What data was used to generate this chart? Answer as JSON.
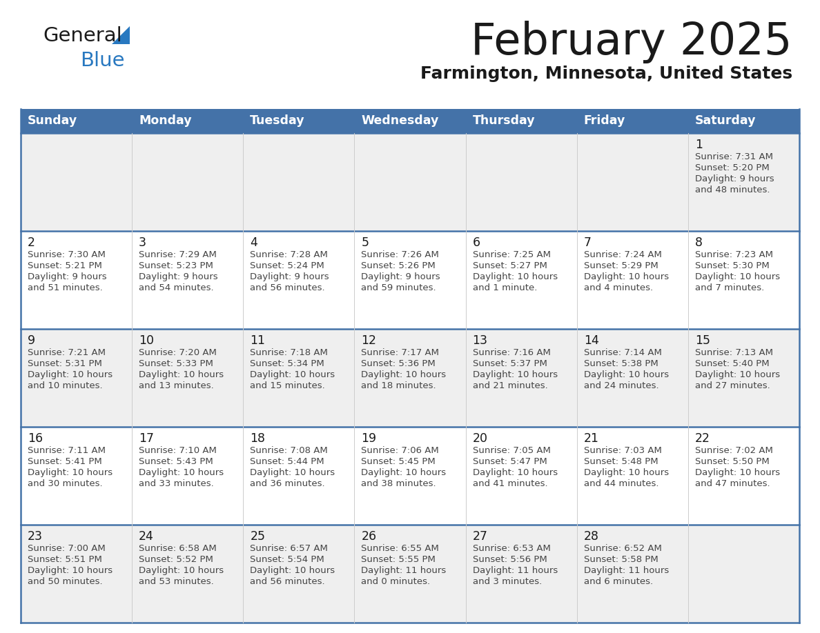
{
  "title": "February 2025",
  "subtitle": "Farmington, Minnesota, United States",
  "header_bg": "#4472a8",
  "header_text": "#ffffff",
  "cell_bg_row0": "#efefef",
  "cell_bg_row1": "#ffffff",
  "cell_border_blue": "#4472a8",
  "cell_border_gray": "#cccccc",
  "text_dark": "#1a1a1a",
  "text_info": "#444444",
  "logo_black": "#1a1a1a",
  "logo_blue": "#2878c0",
  "day_headers": [
    "Sunday",
    "Monday",
    "Tuesday",
    "Wednesday",
    "Thursday",
    "Friday",
    "Saturday"
  ],
  "days": [
    {
      "day": 1,
      "col": 6,
      "row": 0,
      "sunrise": "7:31 AM",
      "sunset": "5:20 PM",
      "daylight_line1": "Daylight: 9 hours",
      "daylight_line2": "and 48 minutes."
    },
    {
      "day": 2,
      "col": 0,
      "row": 1,
      "sunrise": "7:30 AM",
      "sunset": "5:21 PM",
      "daylight_line1": "Daylight: 9 hours",
      "daylight_line2": "and 51 minutes."
    },
    {
      "day": 3,
      "col": 1,
      "row": 1,
      "sunrise": "7:29 AM",
      "sunset": "5:23 PM",
      "daylight_line1": "Daylight: 9 hours",
      "daylight_line2": "and 54 minutes."
    },
    {
      "day": 4,
      "col": 2,
      "row": 1,
      "sunrise": "7:28 AM",
      "sunset": "5:24 PM",
      "daylight_line1": "Daylight: 9 hours",
      "daylight_line2": "and 56 minutes."
    },
    {
      "day": 5,
      "col": 3,
      "row": 1,
      "sunrise": "7:26 AM",
      "sunset": "5:26 PM",
      "daylight_line1": "Daylight: 9 hours",
      "daylight_line2": "and 59 minutes."
    },
    {
      "day": 6,
      "col": 4,
      "row": 1,
      "sunrise": "7:25 AM",
      "sunset": "5:27 PM",
      "daylight_line1": "Daylight: 10 hours",
      "daylight_line2": "and 1 minute."
    },
    {
      "day": 7,
      "col": 5,
      "row": 1,
      "sunrise": "7:24 AM",
      "sunset": "5:29 PM",
      "daylight_line1": "Daylight: 10 hours",
      "daylight_line2": "and 4 minutes."
    },
    {
      "day": 8,
      "col": 6,
      "row": 1,
      "sunrise": "7:23 AM",
      "sunset": "5:30 PM",
      "daylight_line1": "Daylight: 10 hours",
      "daylight_line2": "and 7 minutes."
    },
    {
      "day": 9,
      "col": 0,
      "row": 2,
      "sunrise": "7:21 AM",
      "sunset": "5:31 PM",
      "daylight_line1": "Daylight: 10 hours",
      "daylight_line2": "and 10 minutes."
    },
    {
      "day": 10,
      "col": 1,
      "row": 2,
      "sunrise": "7:20 AM",
      "sunset": "5:33 PM",
      "daylight_line1": "Daylight: 10 hours",
      "daylight_line2": "and 13 minutes."
    },
    {
      "day": 11,
      "col": 2,
      "row": 2,
      "sunrise": "7:18 AM",
      "sunset": "5:34 PM",
      "daylight_line1": "Daylight: 10 hours",
      "daylight_line2": "and 15 minutes."
    },
    {
      "day": 12,
      "col": 3,
      "row": 2,
      "sunrise": "7:17 AM",
      "sunset": "5:36 PM",
      "daylight_line1": "Daylight: 10 hours",
      "daylight_line2": "and 18 minutes."
    },
    {
      "day": 13,
      "col": 4,
      "row": 2,
      "sunrise": "7:16 AM",
      "sunset": "5:37 PM",
      "daylight_line1": "Daylight: 10 hours",
      "daylight_line2": "and 21 minutes."
    },
    {
      "day": 14,
      "col": 5,
      "row": 2,
      "sunrise": "7:14 AM",
      "sunset": "5:38 PM",
      "daylight_line1": "Daylight: 10 hours",
      "daylight_line2": "and 24 minutes."
    },
    {
      "day": 15,
      "col": 6,
      "row": 2,
      "sunrise": "7:13 AM",
      "sunset": "5:40 PM",
      "daylight_line1": "Daylight: 10 hours",
      "daylight_line2": "and 27 minutes."
    },
    {
      "day": 16,
      "col": 0,
      "row": 3,
      "sunrise": "7:11 AM",
      "sunset": "5:41 PM",
      "daylight_line1": "Daylight: 10 hours",
      "daylight_line2": "and 30 minutes."
    },
    {
      "day": 17,
      "col": 1,
      "row": 3,
      "sunrise": "7:10 AM",
      "sunset": "5:43 PM",
      "daylight_line1": "Daylight: 10 hours",
      "daylight_line2": "and 33 minutes."
    },
    {
      "day": 18,
      "col": 2,
      "row": 3,
      "sunrise": "7:08 AM",
      "sunset": "5:44 PM",
      "daylight_line1": "Daylight: 10 hours",
      "daylight_line2": "and 36 minutes."
    },
    {
      "day": 19,
      "col": 3,
      "row": 3,
      "sunrise": "7:06 AM",
      "sunset": "5:45 PM",
      "daylight_line1": "Daylight: 10 hours",
      "daylight_line2": "and 38 minutes."
    },
    {
      "day": 20,
      "col": 4,
      "row": 3,
      "sunrise": "7:05 AM",
      "sunset": "5:47 PM",
      "daylight_line1": "Daylight: 10 hours",
      "daylight_line2": "and 41 minutes."
    },
    {
      "day": 21,
      "col": 5,
      "row": 3,
      "sunrise": "7:03 AM",
      "sunset": "5:48 PM",
      "daylight_line1": "Daylight: 10 hours",
      "daylight_line2": "and 44 minutes."
    },
    {
      "day": 22,
      "col": 6,
      "row": 3,
      "sunrise": "7:02 AM",
      "sunset": "5:50 PM",
      "daylight_line1": "Daylight: 10 hours",
      "daylight_line2": "and 47 minutes."
    },
    {
      "day": 23,
      "col": 0,
      "row": 4,
      "sunrise": "7:00 AM",
      "sunset": "5:51 PM",
      "daylight_line1": "Daylight: 10 hours",
      "daylight_line2": "and 50 minutes."
    },
    {
      "day": 24,
      "col": 1,
      "row": 4,
      "sunrise": "6:58 AM",
      "sunset": "5:52 PM",
      "daylight_line1": "Daylight: 10 hours",
      "daylight_line2": "and 53 minutes."
    },
    {
      "day": 25,
      "col": 2,
      "row": 4,
      "sunrise": "6:57 AM",
      "sunset": "5:54 PM",
      "daylight_line1": "Daylight: 10 hours",
      "daylight_line2": "and 56 minutes."
    },
    {
      "day": 26,
      "col": 3,
      "row": 4,
      "sunrise": "6:55 AM",
      "sunset": "5:55 PM",
      "daylight_line1": "Daylight: 11 hours",
      "daylight_line2": "and 0 minutes."
    },
    {
      "day": 27,
      "col": 4,
      "row": 4,
      "sunrise": "6:53 AM",
      "sunset": "5:56 PM",
      "daylight_line1": "Daylight: 11 hours",
      "daylight_line2": "and 3 minutes."
    },
    {
      "day": 28,
      "col": 5,
      "row": 4,
      "sunrise": "6:52 AM",
      "sunset": "5:58 PM",
      "daylight_line1": "Daylight: 11 hours",
      "daylight_line2": "and 6 minutes."
    }
  ],
  "num_rows": 5,
  "num_cols": 7,
  "fig_width": 11.88,
  "fig_height": 9.18,
  "dpi": 100
}
